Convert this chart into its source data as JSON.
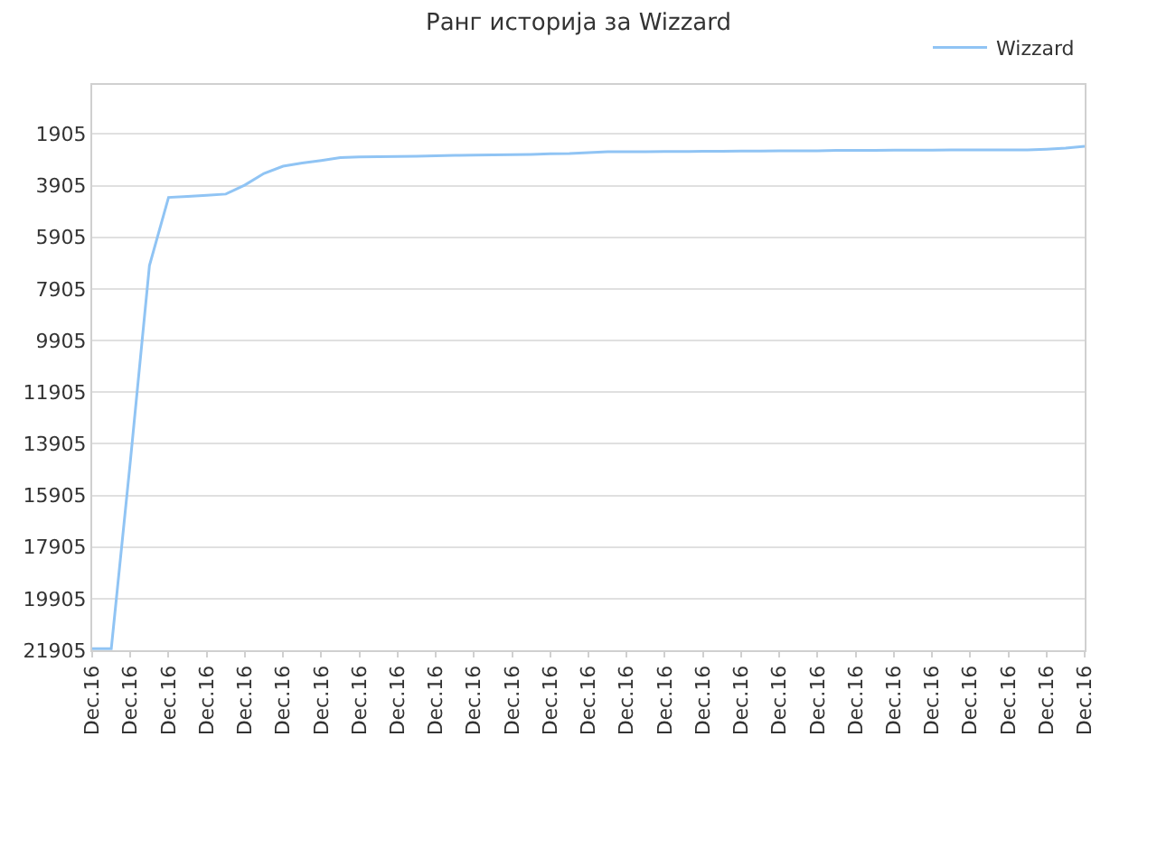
{
  "chart_data": {
    "type": "line",
    "title": "Ранг историја за Wizzard",
    "categories": [
      "Dec.16",
      null,
      "Dec.16",
      null,
      "Dec.16",
      null,
      "Dec.16",
      null,
      "Dec.16",
      null,
      "Dec.16",
      null,
      "Dec.16",
      null,
      "Dec.16",
      null,
      "Dec.16",
      null,
      "Dec.16",
      null,
      "Dec.16",
      null,
      "Dec.16",
      null,
      "Dec.16",
      null,
      "Dec.16",
      null,
      "Dec.16",
      null,
      "Dec.16",
      null,
      "Dec.16",
      null,
      "Dec.16",
      null,
      "Dec.16",
      null,
      "Dec.16",
      null,
      "Dec.16",
      null,
      "Dec.16",
      null,
      "Dec.16",
      null,
      "Dec.16",
      null,
      "Dec.16",
      null,
      "Dec.16",
      null,
      "Dec.16"
    ],
    "series": [
      {
        "name": "Wizzard",
        "color": "#90c4f4",
        "values": [
          21840,
          21840,
          14570,
          7000,
          4360,
          4320,
          4280,
          4230,
          3880,
          3430,
          3150,
          3030,
          2930,
          2820,
          2790,
          2780,
          2770,
          2760,
          2750,
          2730,
          2720,
          2710,
          2700,
          2690,
          2670,
          2660,
          2620,
          2590,
          2590,
          2590,
          2580,
          2580,
          2570,
          2570,
          2560,
          2560,
          2550,
          2550,
          2550,
          2540,
          2540,
          2540,
          2530,
          2530,
          2530,
          2520,
          2520,
          2520,
          2520,
          2520,
          2490,
          2450,
          2380
        ]
      }
    ],
    "ylim": [
      21905,
      0
    ],
    "yticks": [
      1905,
      3905,
      5905,
      7905,
      9905,
      11905,
      13905,
      15905,
      17905,
      19905,
      21905
    ],
    "grid": "y",
    "legend": "top right",
    "marker": "none",
    "line_style": "solid"
  }
}
